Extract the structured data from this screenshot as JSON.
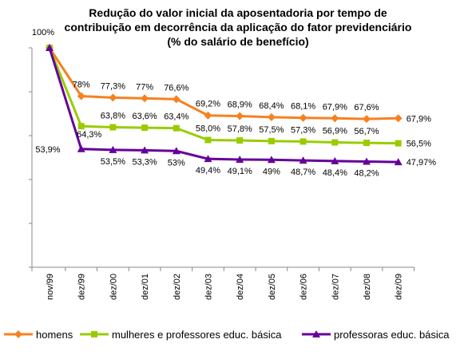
{
  "chart_data": {
    "type": "line",
    "title_lines": [
      "Redução do valor inicial da aposentadoria por tempo de",
      "contribuição em decorrência da aplicação do fator previdenciário",
      "(% do salário de benefício)"
    ],
    "categories": [
      "nov/99",
      "dez/99",
      "dez/00",
      "dez/01",
      "dez/02",
      "dez/03",
      "dez/04",
      "dez/05",
      "dez/06",
      "dez/07",
      "dez/08",
      "dez/09"
    ],
    "ylim": [
      0,
      100
    ],
    "grid": false,
    "legend_position": "bottom",
    "series": [
      {
        "name": "homens",
        "color": "#f58220",
        "marker": "diamond",
        "values": [
          100,
          78,
          77.3,
          77,
          76.6,
          69.2,
          68.9,
          68.4,
          68.1,
          67.9,
          67.6,
          67.9
        ],
        "labels": [
          "100%",
          "78%",
          "77,3%",
          "77%",
          "76,6%",
          "69,2%",
          "68,9%",
          "68,4%",
          "68,1%",
          "67,9%",
          "67,6%",
          "67,9%"
        ]
      },
      {
        "name": "mulheres e professores educ. básica",
        "color": "#99cc00",
        "marker": "square",
        "values": [
          100,
          64.3,
          63.8,
          63.6,
          63.4,
          58.0,
          57.8,
          57.5,
          57.3,
          56.9,
          56.7,
          56.5
        ],
        "labels": [
          "",
          "64,3%",
          "63,8%",
          "63,6%",
          "63,4%",
          "58,0%",
          "57,8%",
          "57,5%",
          "57,3%",
          "56,9%",
          "56,7%",
          "56,5%"
        ]
      },
      {
        "name": "professoras educ. básica",
        "color": "#660099",
        "marker": "triangle",
        "values": [
          100,
          53.9,
          53.5,
          53.3,
          53,
          49.4,
          49.1,
          49,
          48.7,
          48.4,
          48.2,
          47.97
        ],
        "labels": [
          "",
          "53,9%",
          "53,5%",
          "53,3%",
          "53%",
          "49,4%",
          "49,1%",
          "49%",
          "48,7%",
          "48,4%",
          "48,2%",
          "47,97%"
        ]
      }
    ]
  }
}
